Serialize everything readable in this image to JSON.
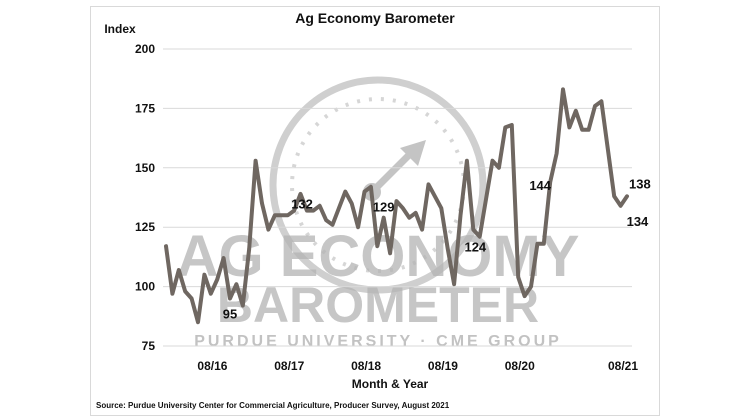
{
  "chart_data": {
    "type": "line",
    "title": "Ag Economy Barometer",
    "ylabel": "Index",
    "xlabel": "Month & Year",
    "source": "Source: Purdue University Center for Commercial Agriculture, Producer Survey, August 2021",
    "ylim": [
      75,
      200
    ],
    "y_ticks": [
      75,
      100,
      125,
      150,
      175,
      200
    ],
    "x_ticks": [
      "08/16",
      "08/17",
      "08/18",
      "08/19",
      "08/20",
      "08/21"
    ],
    "grid": "horizontal",
    "line_color": "#6f6761",
    "series": [
      {
        "values": [
          117,
          97,
          107,
          98,
          95,
          85,
          105,
          97,
          103,
          112,
          95,
          101,
          92,
          116,
          153,
          135,
          124,
          130,
          130,
          130,
          132,
          139,
          132,
          132,
          134,
          128,
          126,
          133,
          140,
          135,
          125,
          140,
          142,
          117,
          129,
          114,
          136,
          133,
          129,
          131,
          124,
          143,
          138,
          133,
          116,
          101,
          130,
          153,
          124,
          121,
          137,
          153,
          150,
          167,
          168,
          104,
          96,
          100,
          118,
          118,
          144,
          156,
          183,
          167,
          174,
          166,
          166,
          176,
          178,
          158,
          138,
          134,
          138
        ]
      }
    ],
    "annotations": [
      {
        "text": "95",
        "index": 10
      },
      {
        "text": "132",
        "index": 20
      },
      {
        "text": "129",
        "index": 34
      },
      {
        "text": "124",
        "index": 48
      },
      {
        "text": "144",
        "index": 60
      },
      {
        "text": "134",
        "index": 71
      },
      {
        "text": "138",
        "index": 72
      }
    ],
    "watermark": {
      "line1": "AG ECONOMY",
      "line2": "BAROMETER",
      "line3": "PURDUE UNIVERSITY · CME GROUP"
    }
  }
}
